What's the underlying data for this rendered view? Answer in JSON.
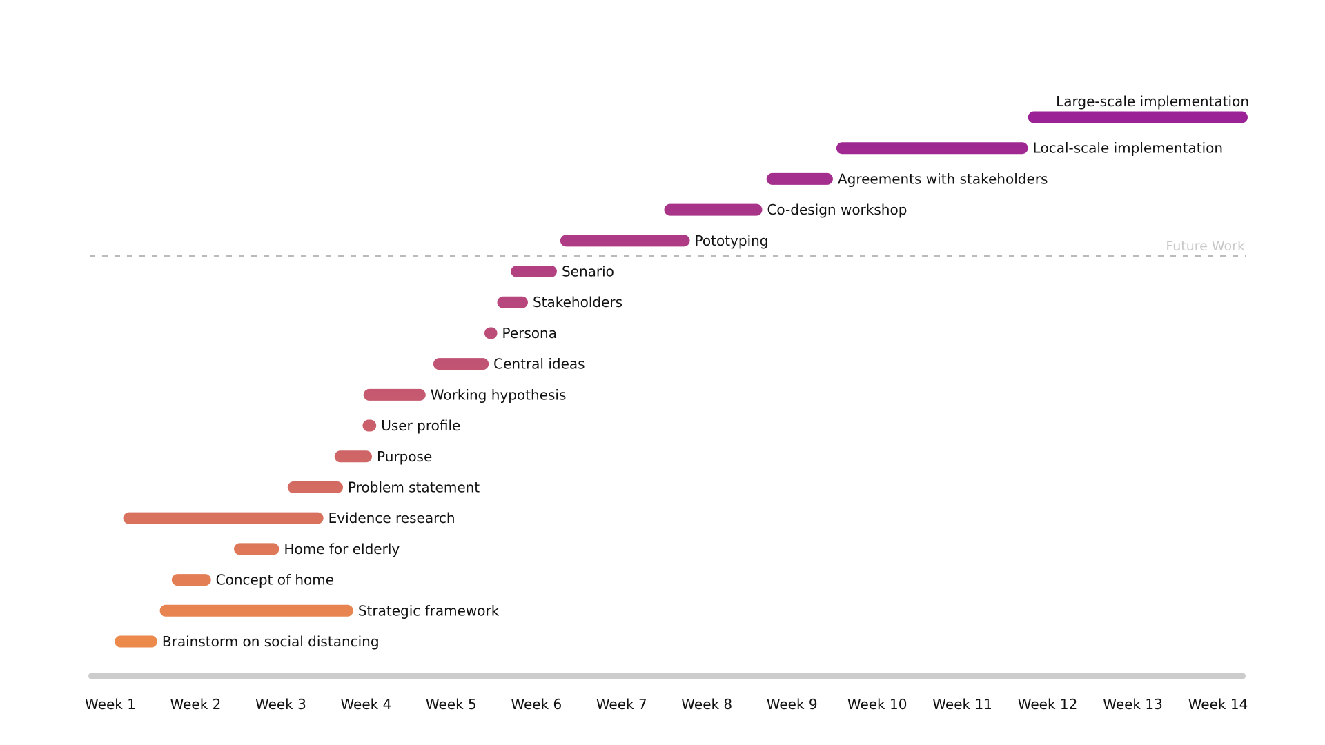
{
  "chart_data": {
    "type": "gantt",
    "title": "",
    "xlabel": "",
    "ylabel": "",
    "x_unit": "week",
    "xlim": [
      1,
      14
    ],
    "grid": false,
    "legend": "none",
    "week_labels": [
      "Week 1",
      "Week 2",
      "Week 3",
      "Week 4",
      "Week 5",
      "Week 6",
      "Week 7",
      "Week 8",
      "Week 9",
      "Week 10",
      "Week 11",
      "Week 12",
      "Week 13",
      "Week 14"
    ],
    "future_work_label": "Future Work",
    "future_work_boundary_week": 6.25,
    "tasks": [
      {
        "label": "Brainstorm on social distancing",
        "start": 1.05,
        "end": 1.55
      },
      {
        "label": "Strategic framework",
        "start": 1.58,
        "end": 3.85
      },
      {
        "label": "Concept of home",
        "start": 1.72,
        "end": 2.18
      },
      {
        "label": "Home for elderly",
        "start": 2.45,
        "end": 2.98
      },
      {
        "label": "Evidence research",
        "start": 1.15,
        "end": 3.5
      },
      {
        "label": "Problem statement",
        "start": 3.08,
        "end": 3.73
      },
      {
        "label": "Purpose",
        "start": 3.63,
        "end": 4.07
      },
      {
        "label": "User profile",
        "start": 3.96,
        "end": 4.12
      },
      {
        "label": "Working hypothesis",
        "start": 3.97,
        "end": 4.7
      },
      {
        "label": "Central ideas",
        "start": 4.79,
        "end": 5.44
      },
      {
        "label": "Persona",
        "start": 5.39,
        "end": 5.54
      },
      {
        "label": "Stakeholders",
        "start": 5.54,
        "end": 5.9
      },
      {
        "label": "Senario",
        "start": 5.7,
        "end": 6.24
      },
      {
        "label": "Pototyping",
        "start": 6.28,
        "end": 7.8
      },
      {
        "label": "Co-design workshop",
        "start": 7.5,
        "end": 8.65
      },
      {
        "label": "Agreements with stakeholders",
        "start": 8.7,
        "end": 9.48
      },
      {
        "label": "Local-scale implementation",
        "start": 9.52,
        "end": 11.77
      },
      {
        "label": "Large-scale implementation",
        "start": 11.77,
        "end": 14.35
      }
    ]
  },
  "colors": {
    "bar_gradient_start": "#ec8a4c",
    "bar_gradient_end": "#9a2296",
    "axis_line": "#cccccc",
    "divider": "#bbbbbb",
    "future_work_text": "#c8c8c8",
    "text": "#111111"
  }
}
